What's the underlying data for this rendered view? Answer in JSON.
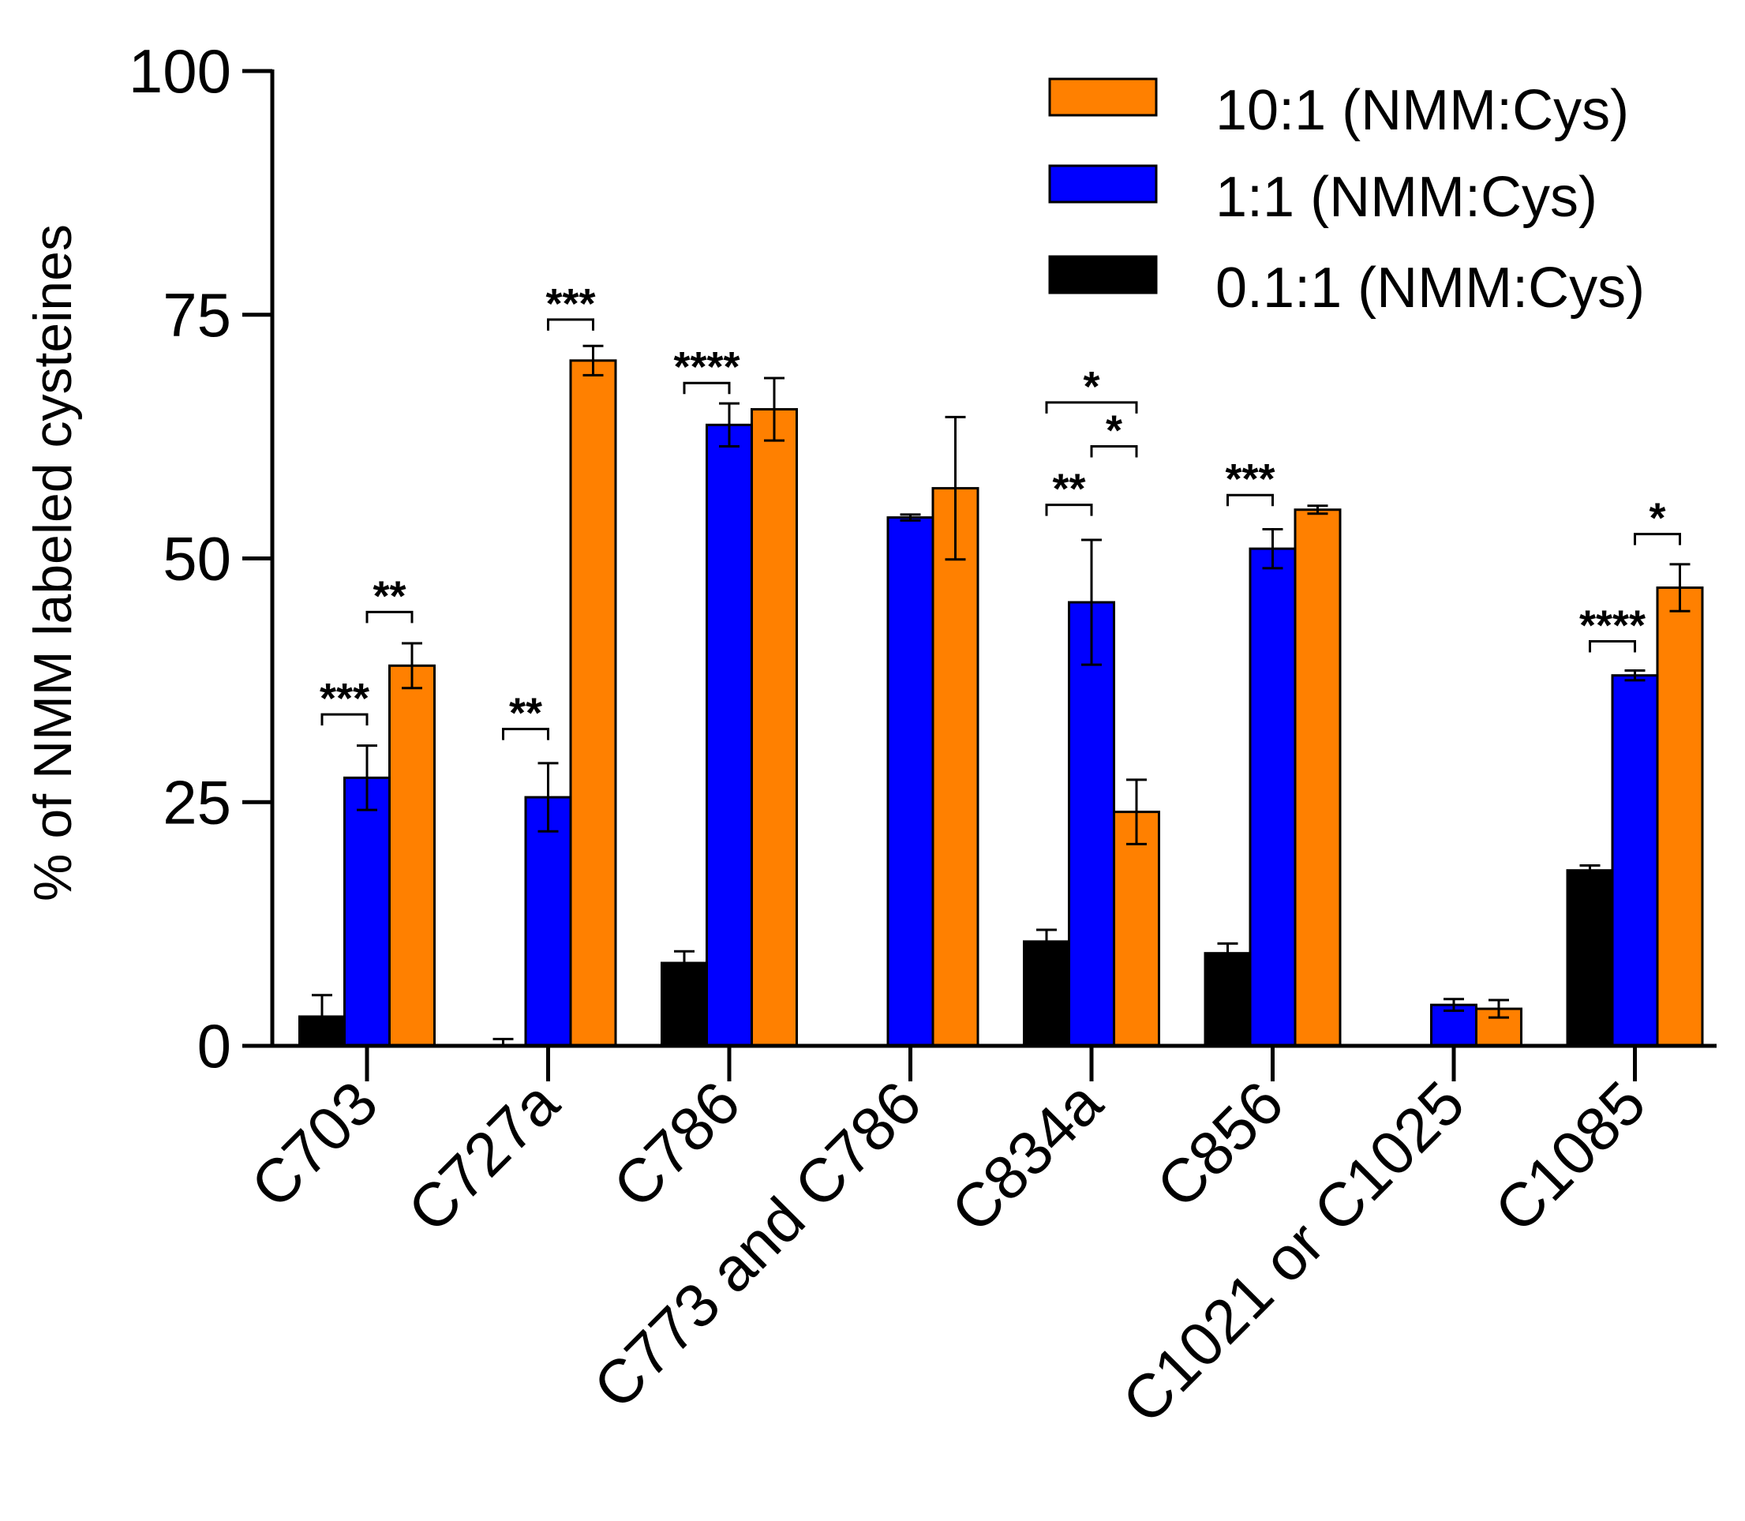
{
  "chart_data": {
    "type": "bar",
    "title": "",
    "xlabel": "",
    "ylabel": "% of NMM labeled cysteines",
    "ylim": [
      0,
      100
    ],
    "yticks": [
      0,
      25,
      50,
      75,
      100
    ],
    "ytick_labels": [
      "0",
      "25",
      "50",
      "75",
      "100"
    ],
    "grid": false,
    "legend_position": "top-right",
    "categories": [
      "C703",
      "C727a",
      "C786",
      "C773 and C786",
      "C834a",
      "C856",
      "C1021 or C1025",
      "C1085"
    ],
    "series": [
      {
        "name": "0.1:1 (NMM:Cys)",
        "color": "#000000",
        "values": [
          3,
          0,
          8.5,
          0,
          10.7,
          9.5,
          0,
          18
        ],
        "errors": [
          2.2,
          0.7,
          1.2,
          0,
          1.2,
          1.0,
          0,
          0.5
        ]
      },
      {
        "name": "1:1 (NMM:Cys)",
        "color": "#0000ff",
        "values": [
          27.5,
          25.5,
          63.7,
          54.2,
          45.5,
          51,
          4.2,
          38
        ],
        "errors": [
          3.3,
          3.5,
          2.2,
          0.3,
          6.4,
          2.0,
          0.6,
          0.5
        ]
      },
      {
        "name": "10:1 (NMM:Cys)",
        "color": "#ff8000",
        "values": [
          39,
          70.3,
          65.3,
          57.2,
          24,
          55,
          3.8,
          47
        ],
        "errors": [
          2.3,
          1.5,
          3.2,
          7.3,
          3.3,
          0.4,
          0.9,
          2.4
        ]
      }
    ],
    "annotations": [
      {
        "category": 0,
        "from": 0,
        "to": 1,
        "label": "***",
        "y": 34
      },
      {
        "category": 0,
        "from": 1,
        "to": 2,
        "label": "**",
        "y": 44.5
      },
      {
        "category": 1,
        "from": 0,
        "to": 1,
        "label": "**",
        "y": 32.5
      },
      {
        "category": 1,
        "from": 1,
        "to": 2,
        "label": "***",
        "y": 74.5
      },
      {
        "category": 2,
        "from": 0,
        "to": 1,
        "label": "****",
        "y": 68
      },
      {
        "category": 4,
        "from": 0,
        "to": 2,
        "label": "*",
        "y": 66
      },
      {
        "category": 4,
        "from": 1,
        "to": 2,
        "label": "*",
        "y": 61.5
      },
      {
        "category": 4,
        "from": 0,
        "to": 1,
        "label": "**",
        "y": 55.5
      },
      {
        "category": 5,
        "from": 0,
        "to": 1,
        "label": "***",
        "y": 56.5
      },
      {
        "category": 7,
        "from": 1,
        "to": 2,
        "label": "*",
        "y": 52.5
      },
      {
        "category": 7,
        "from": 0,
        "to": 1,
        "label": "****",
        "y": 41.5
      }
    ],
    "legend_order": [
      2,
      1,
      0
    ]
  }
}
